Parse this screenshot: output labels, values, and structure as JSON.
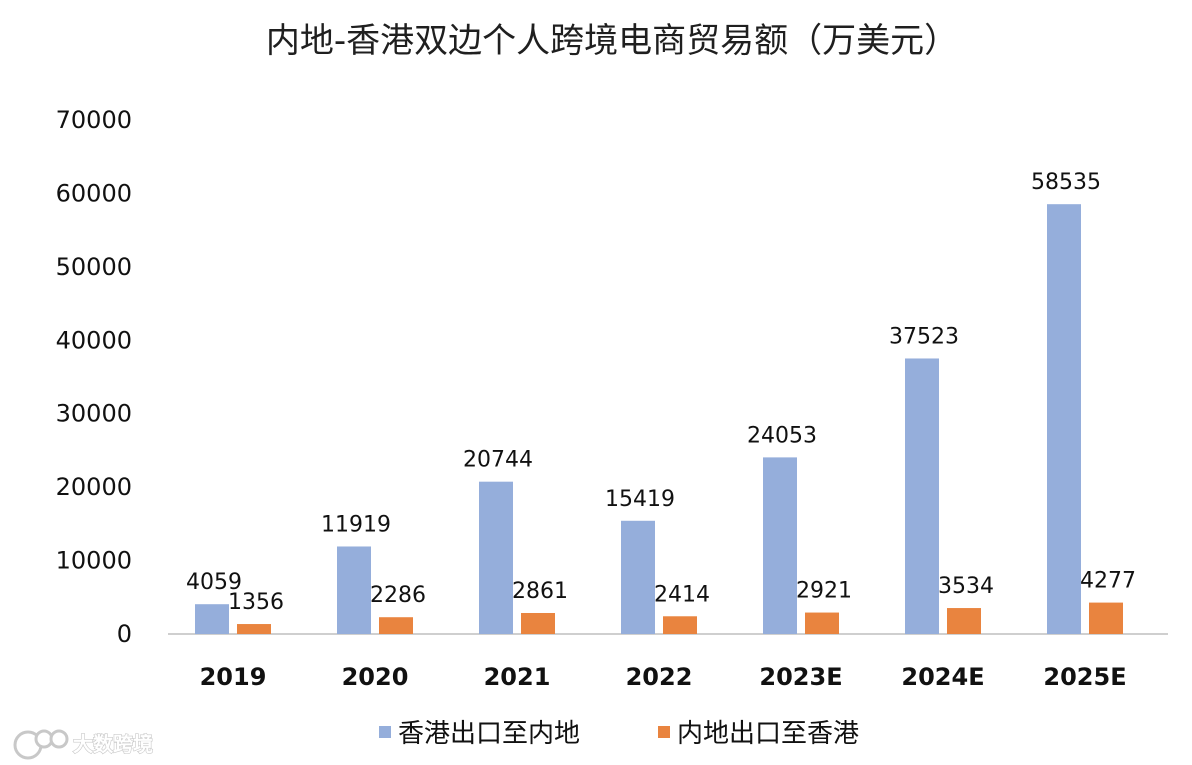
{
  "chart_data": {
    "type": "bar",
    "title": "内地-香港双边个人跨境电商贸易额（万美元）",
    "categories": [
      "2019",
      "2020",
      "2021",
      "2022",
      "2023E",
      "2024E",
      "2025E"
    ],
    "series": [
      {
        "name": "香港出口至内地",
        "color": "#95aedb",
        "values": [
          4059,
          11919,
          20744,
          15419,
          24053,
          37523,
          58535
        ]
      },
      {
        "name": "内地出口至香港",
        "color": "#e9843f",
        "values": [
          1356,
          2286,
          2861,
          2414,
          2921,
          3534,
          4277
        ]
      }
    ],
    "ylim": [
      0,
      70000
    ],
    "yticks": [
      0,
      10000,
      20000,
      30000,
      40000,
      50000,
      60000,
      70000
    ],
    "grid": false,
    "legend": "bottom",
    "xlabel": "",
    "ylabel": ""
  },
  "watermark": {
    "text": "大数跨境",
    "icon": "logo-icon"
  }
}
